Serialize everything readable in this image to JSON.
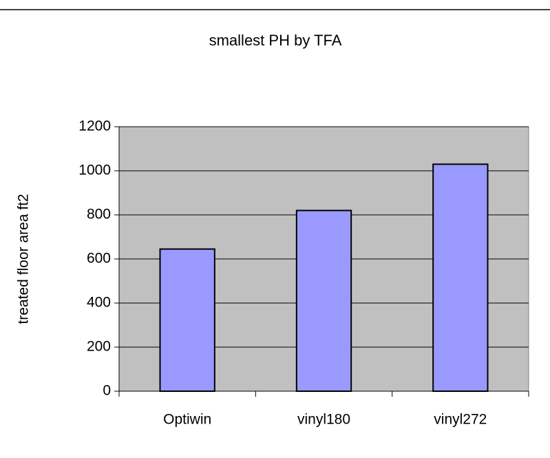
{
  "chart_data": {
    "type": "bar",
    "title": "smallest PH by TFA",
    "y_label": "treated floor area ft2",
    "categories": [
      "Optiwin",
      "vinyl180",
      "vinyl272"
    ],
    "values": [
      645,
      820,
      1030
    ],
    "color": "#9999ff",
    "ylim": [
      0,
      1200
    ],
    "yticks": [
      0,
      200,
      400,
      600,
      800,
      1000,
      1200
    ],
    "grid": true
  }
}
